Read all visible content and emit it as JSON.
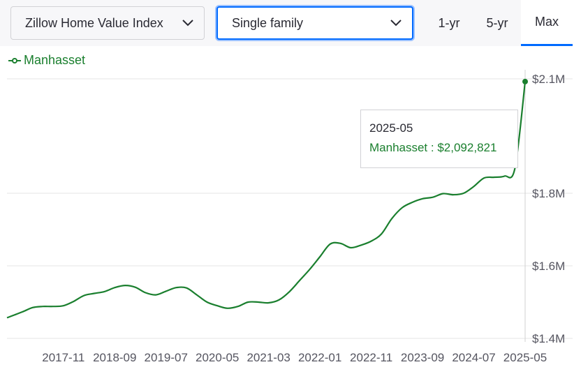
{
  "controls": {
    "metric": "Zillow Home Value Index",
    "home_type": "Single family",
    "tabs": [
      "1-yr",
      "5-yr",
      "Max"
    ],
    "active_tab": "Max"
  },
  "tooltip": {
    "date": "2025-05",
    "series": "Manhasset",
    "value": "$2,092,821"
  },
  "colors": {
    "series": "#1a7f2e",
    "accent": "#006aff"
  },
  "chart_data": {
    "type": "line",
    "title": "",
    "xlabel": "",
    "ylabel": "",
    "x_tick_labels": [
      "2017-11",
      "2018-09",
      "2019-07",
      "2020-05",
      "2021-03",
      "2022-01",
      "2022-11",
      "2023-09",
      "2024-07",
      "2025-05"
    ],
    "y_tick_labels": [
      "$1.4M",
      "$1.6M",
      "$1.8M",
      "$2.1M"
    ],
    "y_ticks": [
      1400000,
      1600000,
      1800000,
      2100000
    ],
    "ylim": [
      1400000,
      2100000
    ],
    "y_axis_side": "right",
    "grid": true,
    "legend": "top-left",
    "series": [
      {
        "name": "Manhasset",
        "points": [
          [
            "2016-12",
            1457000
          ],
          [
            "2017-03",
            1473000
          ],
          [
            "2017-05",
            1485000
          ],
          [
            "2017-07",
            1488000
          ],
          [
            "2017-09",
            1488000
          ],
          [
            "2017-11",
            1490000
          ],
          [
            "2018-01",
            1502000
          ],
          [
            "2018-03",
            1518000
          ],
          [
            "2018-05",
            1524000
          ],
          [
            "2018-07",
            1529000
          ],
          [
            "2018-09",
            1540000
          ],
          [
            "2018-11",
            1546000
          ],
          [
            "2019-01",
            1541000
          ],
          [
            "2019-03",
            1526000
          ],
          [
            "2019-05",
            1520000
          ],
          [
            "2019-07",
            1530000
          ],
          [
            "2019-09",
            1540000
          ],
          [
            "2019-11",
            1539000
          ],
          [
            "2020-01",
            1520000
          ],
          [
            "2020-03",
            1500000
          ],
          [
            "2020-05",
            1490000
          ],
          [
            "2020-07",
            1483000
          ],
          [
            "2020-09",
            1488000
          ],
          [
            "2020-11",
            1500000
          ],
          [
            "2021-01",
            1500000
          ],
          [
            "2021-03",
            1498000
          ],
          [
            "2021-05",
            1506000
          ],
          [
            "2021-07",
            1528000
          ],
          [
            "2021-09",
            1559000
          ],
          [
            "2021-11",
            1590000
          ],
          [
            "2022-01",
            1625000
          ],
          [
            "2022-03",
            1660000
          ],
          [
            "2022-05",
            1662000
          ],
          [
            "2022-07",
            1650000
          ],
          [
            "2022-09",
            1657000
          ],
          [
            "2022-11",
            1668000
          ],
          [
            "2023-01",
            1688000
          ],
          [
            "2023-03",
            1730000
          ],
          [
            "2023-05",
            1760000
          ],
          [
            "2023-07",
            1775000
          ],
          [
            "2023-09",
            1785000
          ],
          [
            "2023-11",
            1789000
          ],
          [
            "2024-01",
            1799000
          ],
          [
            "2024-03",
            1796000
          ],
          [
            "2024-05",
            1800000
          ],
          [
            "2024-07",
            1818000
          ],
          [
            "2024-09",
            1840000
          ],
          [
            "2024-11",
            1842000
          ],
          [
            "2025-01",
            1845000
          ],
          [
            "2025-03",
            1865000
          ],
          [
            "2025-05",
            2092821
          ]
        ]
      }
    ]
  }
}
